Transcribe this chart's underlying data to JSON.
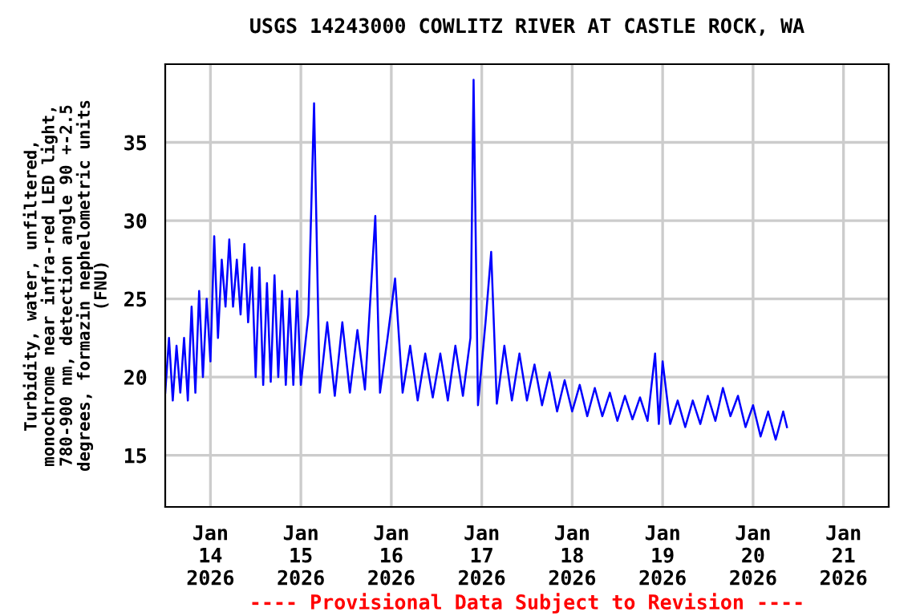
{
  "chart_data": {
    "type": "line",
    "title": "USGS 14243000 COWLITZ RIVER AT CASTLE ROCK, WA",
    "ylabel": "Turbidity, water, unfiltered,\nmonochrome near infra-red LED light,\n780-900 nm, detection angle 90 +-2.5\ndegrees, formazin nephelometric units\n(FNU)",
    "annotations": [
      "---- Provisional Data Subject to Revision ----"
    ],
    "x": [
      "2026-01-13T12:00",
      "2026-01-13T13:00",
      "2026-01-13T14:00",
      "2026-01-13T15:00",
      "2026-01-13T16:00",
      "2026-01-13T17:00",
      "2026-01-13T18:00",
      "2026-01-13T19:00",
      "2026-01-13T20:00",
      "2026-01-13T21:00",
      "2026-01-13T22:00",
      "2026-01-13T23:00",
      "2026-01-14T00:00",
      "2026-01-14T01:00",
      "2026-01-14T02:00",
      "2026-01-14T03:00",
      "2026-01-14T04:00",
      "2026-01-14T05:00",
      "2026-01-14T06:00",
      "2026-01-14T07:00",
      "2026-01-14T08:00",
      "2026-01-14T09:00",
      "2026-01-14T10:00",
      "2026-01-14T11:00",
      "2026-01-14T12:00",
      "2026-01-14T13:00",
      "2026-01-14T14:00",
      "2026-01-14T15:00",
      "2026-01-14T16:00",
      "2026-01-14T17:00",
      "2026-01-14T18:00",
      "2026-01-14T19:00",
      "2026-01-14T20:00",
      "2026-01-14T21:00",
      "2026-01-14T22:00",
      "2026-01-14T23:00",
      "2026-01-15T00:00",
      "2026-01-15T02:00",
      "2026-01-15T03:30",
      "2026-01-15T05:00",
      "2026-01-15T07:00",
      "2026-01-15T09:00",
      "2026-01-15T11:00",
      "2026-01-15T13:00",
      "2026-01-15T15:00",
      "2026-01-15T17:00",
      "2026-01-15T19:45",
      "2026-01-15T21:00",
      "2026-01-15T23:00",
      "2026-01-16T01:00",
      "2026-01-16T03:00",
      "2026-01-16T05:00",
      "2026-01-16T07:00",
      "2026-01-16T09:00",
      "2026-01-16T11:00",
      "2026-01-16T13:00",
      "2026-01-16T15:00",
      "2026-01-16T17:00",
      "2026-01-16T19:00",
      "2026-01-16T21:00",
      "2026-01-16T21:50",
      "2026-01-16T23:00",
      "2026-01-17T01:00",
      "2026-01-17T02:30",
      "2026-01-17T04:00",
      "2026-01-17T06:00",
      "2026-01-17T08:00",
      "2026-01-17T10:00",
      "2026-01-17T12:00",
      "2026-01-17T14:00",
      "2026-01-17T16:00",
      "2026-01-17T18:00",
      "2026-01-17T20:00",
      "2026-01-17T22:00",
      "2026-01-18T00:00",
      "2026-01-18T02:00",
      "2026-01-18T04:00",
      "2026-01-18T06:00",
      "2026-01-18T08:00",
      "2026-01-18T10:00",
      "2026-01-18T12:00",
      "2026-01-18T14:00",
      "2026-01-18T16:00",
      "2026-01-18T18:00",
      "2026-01-18T20:00",
      "2026-01-18T22:00",
      "2026-01-18T23:00",
      "2026-01-19T00:00",
      "2026-01-19T02:00",
      "2026-01-19T04:00",
      "2026-01-19T06:00",
      "2026-01-19T08:00",
      "2026-01-19T10:00",
      "2026-01-19T12:00",
      "2026-01-19T14:00",
      "2026-01-19T16:00",
      "2026-01-19T18:00",
      "2026-01-19T20:00",
      "2026-01-19T22:00",
      "2026-01-20T00:00",
      "2026-01-20T02:00",
      "2026-01-20T04:00",
      "2026-01-20T06:00",
      "2026-01-20T08:00",
      "2026-01-20T09:00"
    ],
    "series": [
      {
        "color": "#0000ff",
        "values": [
          19.0,
          22.5,
          18.5,
          22,
          19,
          22.5,
          18.5,
          24.5,
          19,
          25.5,
          20,
          25,
          21,
          29,
          22.5,
          27.5,
          24.5,
          28.8,
          24.5,
          27.5,
          24,
          28.5,
          23.5,
          27,
          20,
          27,
          19.5,
          26,
          19.7,
          26.5,
          20,
          25.5,
          19.5,
          25,
          19.5,
          25.5,
          19.5,
          24,
          37.5,
          19,
          23.5,
          18.8,
          23.5,
          19,
          23,
          19.2,
          30.3,
          19,
          22.5,
          26.3,
          19,
          22,
          18.5,
          21.5,
          18.7,
          21.5,
          18.5,
          22,
          18.8,
          22.5,
          39,
          18.2,
          23.5,
          28,
          18.3,
          22,
          18.5,
          21.5,
          18.5,
          20.8,
          18.2,
          20.3,
          17.8,
          19.8,
          17.8,
          19.5,
          17.5,
          19.3,
          17.5,
          19,
          17.2,
          18.8,
          17.3,
          18.7,
          17.2,
          21.5,
          17,
          21,
          17,
          18.5,
          16.8,
          18.5,
          17,
          18.8,
          17.2,
          19.3,
          17.5,
          18.8,
          16.8,
          18.2,
          16.2,
          17.8,
          16,
          17.8,
          16.8
        ]
      }
    ],
    "xlim": [
      "2026-01-13T12:00",
      "2026-01-21T12:00"
    ],
    "xticks": [
      {
        "value": "2026-01-14",
        "label": "Jan\n14\n2026"
      },
      {
        "value": "2026-01-15",
        "label": "Jan\n15\n2026"
      },
      {
        "value": "2026-01-16",
        "label": "Jan\n16\n2026"
      },
      {
        "value": "2026-01-17",
        "label": "Jan\n17\n2026"
      },
      {
        "value": "2026-01-18",
        "label": "Jan\n18\n2026"
      },
      {
        "value": "2026-01-19",
        "label": "Jan\n19\n2026"
      },
      {
        "value": "2026-01-20",
        "label": "Jan\n20\n2026"
      },
      {
        "value": "2026-01-21",
        "label": "Jan\n21\n2026"
      }
    ],
    "ylim": [
      11.7,
      40
    ],
    "yticks": [
      15,
      20,
      25,
      30,
      35
    ],
    "grid": true,
    "line_style": "solid"
  }
}
